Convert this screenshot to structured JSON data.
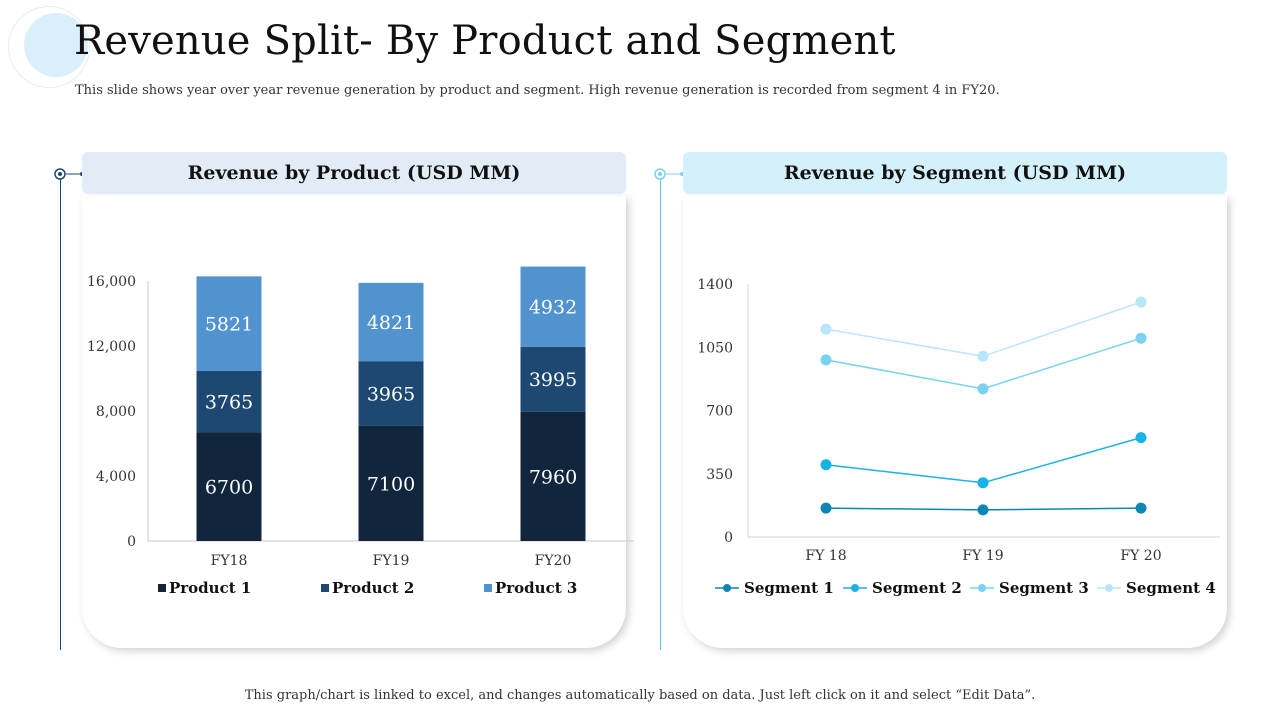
{
  "page": {
    "title": "Revenue Split- By Product and Segment",
    "subtitle": "This slide shows year over year revenue generation by product and segment. High revenue generation is recorded from segment 4 in FY20.",
    "footer": "This graph/chart is linked to excel, and changes automatically based on data. Just left click on it and select “Edit Data”."
  },
  "colors": {
    "product1": "#11263d",
    "product2": "#1d4872",
    "product3": "#5093cf",
    "segment1": "#0e86b3",
    "segment2": "#19b2e6",
    "segment3": "#79d2f2",
    "segment4": "#b9e6f8",
    "head_left": "#e2ecf6",
    "head_right": "#d3f0fb"
  },
  "chart_data": [
    {
      "type": "bar",
      "stacked": true,
      "title": "Revenue by Product (USD MM)",
      "categories": [
        "FY18",
        "FY19",
        "FY20"
      ],
      "series": [
        {
          "name": "Product 1",
          "values": [
            6700,
            7100,
            7960
          ]
        },
        {
          "name": "Product 2",
          "values": [
            3765,
            3965,
            3995
          ]
        },
        {
          "name": "Product 3",
          "values": [
            5821,
            4821,
            4932
          ]
        }
      ],
      "ylim": [
        0,
        16000
      ],
      "yticks": [
        "0",
        "4,000",
        "8,000",
        "12,000",
        "16,000"
      ],
      "legend": "bottom"
    },
    {
      "type": "line",
      "title": "Revenue by Segment (USD MM)",
      "categories": [
        "FY 18",
        "FY 19",
        "FY 20"
      ],
      "series": [
        {
          "name": "Segment 1",
          "values": [
            160,
            150,
            160
          ]
        },
        {
          "name": "Segment 2",
          "values": [
            400,
            300,
            550
          ]
        },
        {
          "name": "Segment 3",
          "values": [
            980,
            820,
            1100
          ]
        },
        {
          "name": "Segment 4",
          "values": [
            1150,
            1000,
            1300
          ]
        }
      ],
      "ylim": [
        0,
        1400
      ],
      "yticks": [
        "0",
        "350",
        "700",
        "1050",
        "1400"
      ],
      "legend": "bottom"
    }
  ]
}
